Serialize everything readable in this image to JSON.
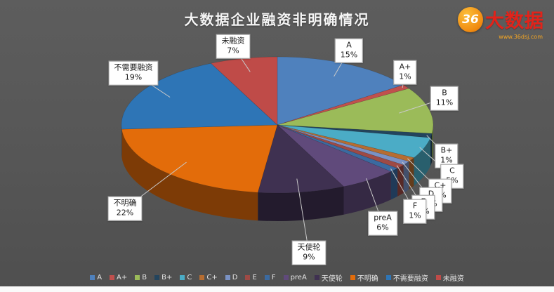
{
  "title": "大数据企业融资非明确情况",
  "logo": {
    "circle_text": "36",
    "brand_text": "大数据",
    "url_text": "www.36dsj.com"
  },
  "chart_data": {
    "type": "pie",
    "style": "3d-pie",
    "title": "大数据企业融资非明确情况",
    "unit": "%",
    "legend_position": "bottom",
    "slices": [
      {
        "label": "A",
        "value": 15,
        "color": "#4f81bd"
      },
      {
        "label": "A+",
        "value": 1,
        "color": "#c0504d"
      },
      {
        "label": "B",
        "value": 11,
        "color": "#9bbb59"
      },
      {
        "label": "B+",
        "value": 1,
        "color": "#23445d"
      },
      {
        "label": "C",
        "value": 5,
        "color": "#4bacc6"
      },
      {
        "label": "C+",
        "value": 1,
        "color": "#b66d31"
      },
      {
        "label": "D",
        "value": 1,
        "color": "#7a92c4"
      },
      {
        "label": "E",
        "value": 1,
        "color": "#9e4a45"
      },
      {
        "label": "F",
        "value": 1,
        "color": "#3b6aa0"
      },
      {
        "label": "preA",
        "value": 6,
        "color": "#604a7b"
      },
      {
        "label": "天使轮",
        "value": 9,
        "color": "#3f3151"
      },
      {
        "label": "不明确",
        "value": 22,
        "color": "#e36c0a"
      },
      {
        "label": "不需要融资",
        "value": 19,
        "color": "#2e75b6"
      },
      {
        "label": "未融资",
        "value": 7,
        "color": "#bf4b48"
      }
    ]
  }
}
